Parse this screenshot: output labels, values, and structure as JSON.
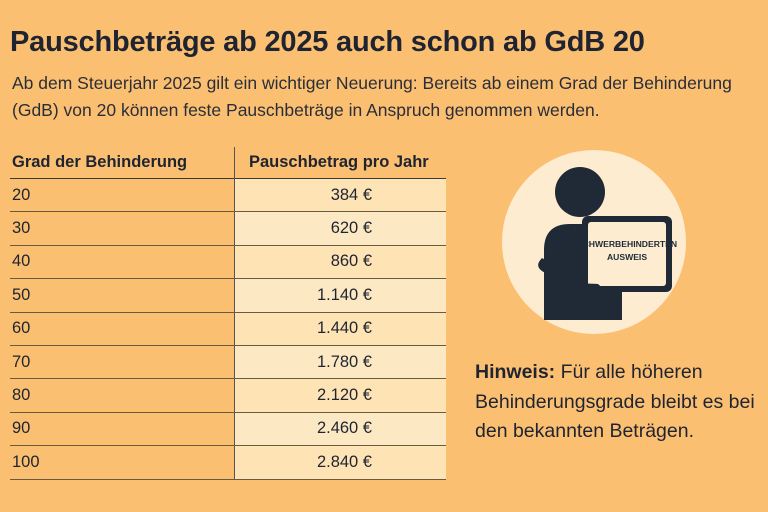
{
  "title": "Pauschbeträge ab 2025 auch schon ab GdB 20",
  "intro": "Ab dem Steuerjahr 2025 gilt ein wichtiger Neuerung: Bereits ab einem Grad der Behinderung (GdB) von 20 können feste Pauschbeträge in Anspruch genommen werden.",
  "table": {
    "headers": [
      "Grad der Behinderung",
      "Pauschbetrag pro Jahr"
    ],
    "rows": [
      {
        "grade": "20",
        "amount": "384 €"
      },
      {
        "grade": "30",
        "amount": "620 €"
      },
      {
        "grade": "40",
        "amount": "860 €"
      },
      {
        "grade": "50",
        "amount": "1.140 €"
      },
      {
        "grade": "60",
        "amount": "1.440 €"
      },
      {
        "grade": "70",
        "amount": "1.780 €"
      },
      {
        "grade": "80",
        "amount": "2.120 €"
      },
      {
        "grade": "90",
        "amount": "2.460 €"
      },
      {
        "grade": "100",
        "amount": "2.840 €"
      }
    ]
  },
  "illustration": {
    "card_line1": "SCHWERBEHINDERTEN",
    "card_line2": "AUSWEIS",
    "circle_color": "#fdecd0",
    "figure_color": "#1f2a36"
  },
  "hint": {
    "label": "Hinweis:",
    "text": " Für alle höheren Behinderungsgrade bleibt es bei den bekannten Beträgen."
  }
}
